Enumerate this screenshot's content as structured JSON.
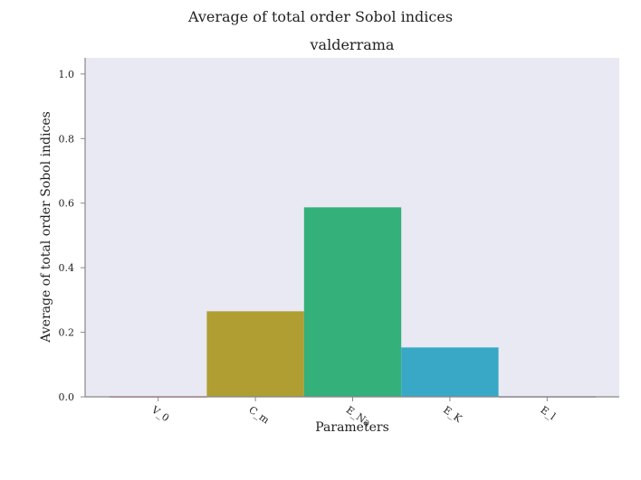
{
  "figure": {
    "suptitle": "Average of total order Sobol indices"
  },
  "chart_data": {
    "type": "bar",
    "title": "valderrama",
    "xlabel": "Parameters",
    "ylabel": "Average of total order Sobol indices",
    "categories": [
      "V_0",
      "C_m",
      "E_Na",
      "E_K",
      "E_l"
    ],
    "values": [
      0.002,
      0.265,
      0.587,
      0.153,
      0.002
    ],
    "colors": [
      "#e8707e",
      "#b09e32",
      "#34b07b",
      "#39a8c6",
      "#b291d6"
    ],
    "ylim": [
      0,
      1.05
    ],
    "yticks": [
      0.0,
      0.2,
      0.4,
      0.6,
      0.8,
      1.0
    ],
    "ytick_labels": [
      "0.0",
      "0.2",
      "0.4",
      "0.6",
      "0.8",
      "1.0"
    ],
    "grid": false,
    "background": "#e9e9f3"
  }
}
